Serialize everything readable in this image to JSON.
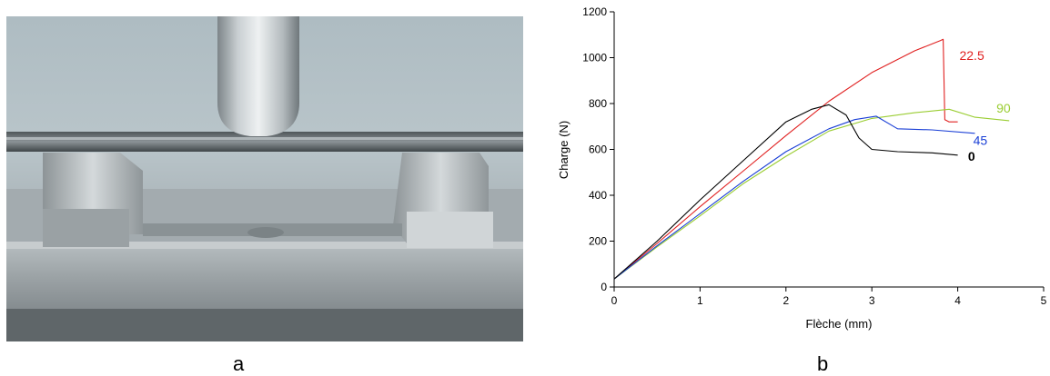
{
  "panels": {
    "left_label": "a",
    "right_label": "b"
  },
  "chart_data": {
    "type": "line",
    "title": "",
    "xlabel": "Flèche (mm)",
    "ylabel": "Charge (N)",
    "xlim": [
      0,
      5
    ],
    "ylim": [
      0,
      1200
    ],
    "x_ticks": [
      0,
      1,
      2,
      3,
      4,
      5
    ],
    "y_ticks": [
      0,
      200,
      400,
      600,
      800,
      1000,
      1200
    ],
    "grid": false,
    "legend": "inline labels at curve ends",
    "series": [
      {
        "name": "22.5",
        "color": "#e02020",
        "label_bold": false,
        "x": [
          0,
          0.5,
          1,
          1.5,
          2,
          2.5,
          3,
          3.5,
          3.8,
          3.83,
          3.85,
          3.9,
          4.0
        ],
        "y": [
          35,
          190,
          350,
          505,
          660,
          810,
          935,
          1030,
          1075,
          1080,
          730,
          720,
          720
        ]
      },
      {
        "name": "90",
        "color": "#9acd32",
        "label_bold": false,
        "x": [
          0,
          0.5,
          1,
          1.5,
          2,
          2.5,
          3,
          3.5,
          3.9,
          4.2,
          4.6
        ],
        "y": [
          35,
          175,
          310,
          450,
          570,
          680,
          735,
          760,
          775,
          740,
          725
        ]
      },
      {
        "name": "45",
        "color": "#1a3fd6",
        "label_bold": false,
        "x": [
          0,
          0.5,
          1,
          1.5,
          2,
          2.5,
          2.8,
          3.05,
          3.3,
          3.7,
          4.2
        ],
        "y": [
          35,
          180,
          320,
          460,
          590,
          690,
          730,
          745,
          690,
          685,
          670
        ]
      },
      {
        "name": "0",
        "color": "#000000",
        "label_bold": true,
        "x": [
          0,
          0.5,
          1,
          1.5,
          2,
          2.3,
          2.5,
          2.7,
          2.85,
          3.0,
          3.3,
          3.7,
          4.0
        ],
        "y": [
          35,
          200,
          380,
          550,
          720,
          775,
          795,
          750,
          650,
          600,
          590,
          585,
          575
        ]
      }
    ],
    "annotations": [
      {
        "text": "22.5",
        "series": "22.5",
        "at": [
          4.02,
          1010
        ]
      },
      {
        "text": "90",
        "series": "90",
        "at": [
          4.45,
          780
        ]
      },
      {
        "text": "45",
        "series": "45",
        "at": [
          4.18,
          640
        ]
      },
      {
        "text": "0",
        "series": "0",
        "at": [
          4.12,
          570
        ]
      }
    ]
  }
}
